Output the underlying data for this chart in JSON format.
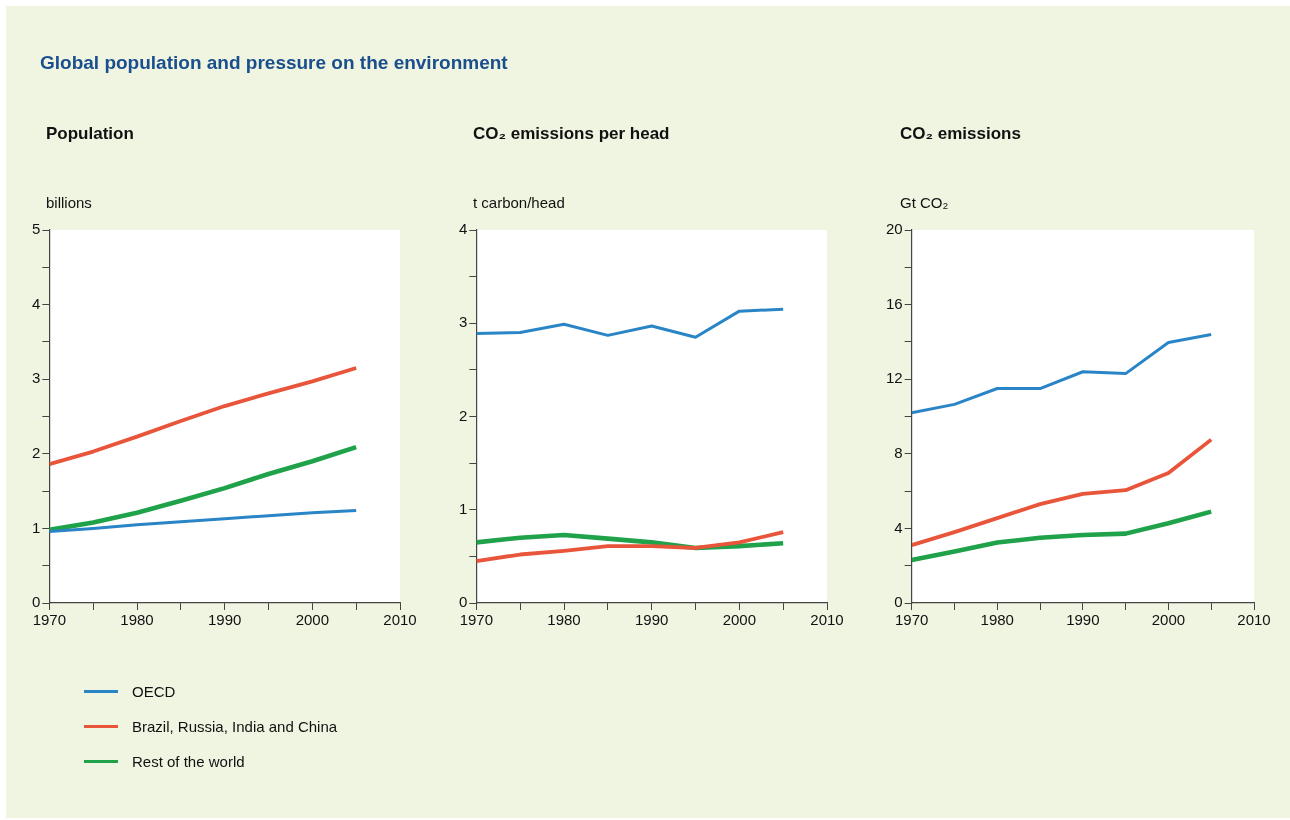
{
  "chart_data": [
    {
      "type": "line",
      "title": "Global population and pressure on the environment",
      "subtitle": "Population",
      "ylabel": "billions",
      "x": [
        1970,
        1975,
        1980,
        1985,
        1990,
        1995,
        2000,
        2005
      ],
      "xlim": [
        1970,
        2010
      ],
      "xticks": [
        1970,
        {
          "value": 1975,
          "label": null
        },
        1980,
        {
          "value": 1985,
          "label": null
        },
        1990,
        {
          "value": 1995,
          "label": null
        },
        2000,
        {
          "value": 2005,
          "label": null
        },
        2010
      ],
      "ylim": [
        0,
        5
      ],
      "yticks": [
        0,
        {
          "value": 0.5,
          "label": null
        },
        1,
        {
          "value": 1.5,
          "label": null
        },
        2,
        {
          "value": 2.5,
          "label": null
        },
        3,
        {
          "value": 3.5,
          "label": null
        },
        4,
        {
          "value": 4.5,
          "label": null
        },
        5
      ],
      "grid": false,
      "legend": "bottom",
      "series": [
        {
          "name": "OECD",
          "color": "#2a85c6",
          "values": [
            0.96,
            1.0,
            1.05,
            1.09,
            1.13,
            1.17,
            1.21,
            1.24
          ]
        },
        {
          "name": "Brazil, Russia, India and China",
          "color": "#e8553a",
          "values": [
            1.86,
            2.03,
            2.23,
            2.44,
            2.64,
            2.81,
            2.97,
            3.15
          ]
        },
        {
          "name": "Rest of the world",
          "color": "#1fa24a",
          "values": [
            0.98,
            1.08,
            1.21,
            1.37,
            1.54,
            1.73,
            1.9,
            2.09
          ]
        }
      ]
    },
    {
      "type": "line",
      "title": "CO₂ emissions per head",
      "ylabel": "t carbon/head",
      "x": [
        1970,
        1975,
        1980,
        1985,
        1990,
        1995,
        2000,
        2005
      ],
      "xlim": [
        1970,
        2010
      ],
      "xticks": [
        1970,
        {
          "value": 1975,
          "label": null
        },
        1980,
        {
          "value": 1985,
          "label": null
        },
        1990,
        {
          "value": 1995,
          "label": null
        },
        2000,
        {
          "value": 2005,
          "label": null
        },
        2010
      ],
      "ylim": [
        0,
        4
      ],
      "yticks": [
        0,
        {
          "value": 0.5,
          "label": null
        },
        1,
        {
          "value": 1.5,
          "label": null
        },
        2,
        {
          "value": 2.5,
          "label": null
        },
        3,
        {
          "value": 3.5,
          "label": null
        },
        4
      ],
      "grid": false,
      "series": [
        {
          "color": "#2a85c6",
          "values": [
            2.89,
            2.9,
            2.99,
            2.87,
            2.97,
            2.85,
            3.13,
            3.15
          ]
        },
        {
          "color": "#e8553a",
          "values": [
            0.45,
            0.52,
            0.56,
            0.61,
            0.61,
            0.59,
            0.65,
            0.76
          ]
        },
        {
          "color": "#1fa24a",
          "values": [
            0.65,
            0.7,
            0.73,
            0.69,
            0.65,
            0.59,
            0.61,
            0.64
          ]
        }
      ]
    },
    {
      "type": "line",
      "title": "CO₂ emissions",
      "ylabel": "Gt CO₂",
      "x": [
        1970,
        1975,
        1980,
        1985,
        1990,
        1995,
        2000,
        2005
      ],
      "xlim": [
        1970,
        2010
      ],
      "xticks": [
        1970,
        {
          "value": 1975,
          "label": null
        },
        1980,
        {
          "value": 1985,
          "label": null
        },
        1990,
        {
          "value": 1995,
          "label": null
        },
        2000,
        {
          "value": 2005,
          "label": null
        },
        2010
      ],
      "ylim": [
        0,
        20
      ],
      "yticks": [
        0,
        {
          "value": 2,
          "label": null
        },
        4,
        {
          "value": 6,
          "label": null
        },
        8,
        {
          "value": 10,
          "label": null
        },
        12,
        {
          "value": 14,
          "label": null
        },
        16,
        {
          "value": 18,
          "label": null
        },
        20
      ],
      "grid": false,
      "series": [
        {
          "color": "#2a85c6",
          "values": [
            10.2,
            10.65,
            11.5,
            11.5,
            12.4,
            12.3,
            13.97,
            14.4
          ]
        },
        {
          "color": "#e8553a",
          "values": [
            3.1,
            3.8,
            4.55,
            5.3,
            5.85,
            6.05,
            6.97,
            8.76
          ]
        },
        {
          "color": "#1fa24a",
          "values": [
            2.3,
            2.76,
            3.24,
            3.5,
            3.65,
            3.72,
            4.28,
            4.9
          ]
        }
      ]
    }
  ]
}
